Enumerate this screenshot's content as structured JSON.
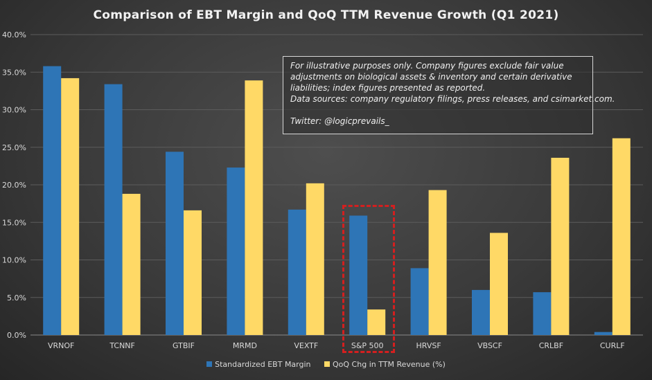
{
  "chart_data": {
    "type": "bar",
    "title": "Comparison  of EBT Margin and QoQ TTM Revenue Growth (Q1 2021)",
    "xlabel": "",
    "ylabel": "",
    "categories": [
      "VRNOF",
      "TCNNF",
      "GTBIF",
      "MRMD",
      "VEXTF",
      "S&P 500",
      "HRVSF",
      "VBSCF",
      "CRLBF",
      "CURLF"
    ],
    "series": [
      {
        "name": "Standardized EBT Margin",
        "color": "#2e75b6",
        "values": [
          35.8,
          33.4,
          24.4,
          22.3,
          16.7,
          15.9,
          8.9,
          6.0,
          5.7,
          0.4
        ]
      },
      {
        "name": "QoQ Chg in TTM Revenue (%)",
        "color": "#ffd966",
        "values": [
          34.2,
          18.8,
          16.6,
          33.9,
          20.2,
          3.4,
          19.3,
          13.6,
          23.6,
          26.2
        ]
      }
    ],
    "ylim": [
      0,
      40
    ],
    "yticks": [
      "0.0%",
      "5.0%",
      "10.0%",
      "15.0%",
      "20.0%",
      "25.0%",
      "30.0%",
      "35.0%",
      "40.0%"
    ],
    "grid": true,
    "legend": "bottom",
    "highlighted_category": "S&P 500",
    "highlight_color": "#d41f1f"
  },
  "note": {
    "lines": [
      "For illustrative purposes only. Company figures exclude fair value",
      "adjustments on biological  assets & inventory and certain derivative",
      "liabilities; index figures presented as reported.",
      "Data sources: company regulatory filings, press releases, and csimarket.com.",
      "",
      "Twitter: @logicprevails_"
    ]
  }
}
